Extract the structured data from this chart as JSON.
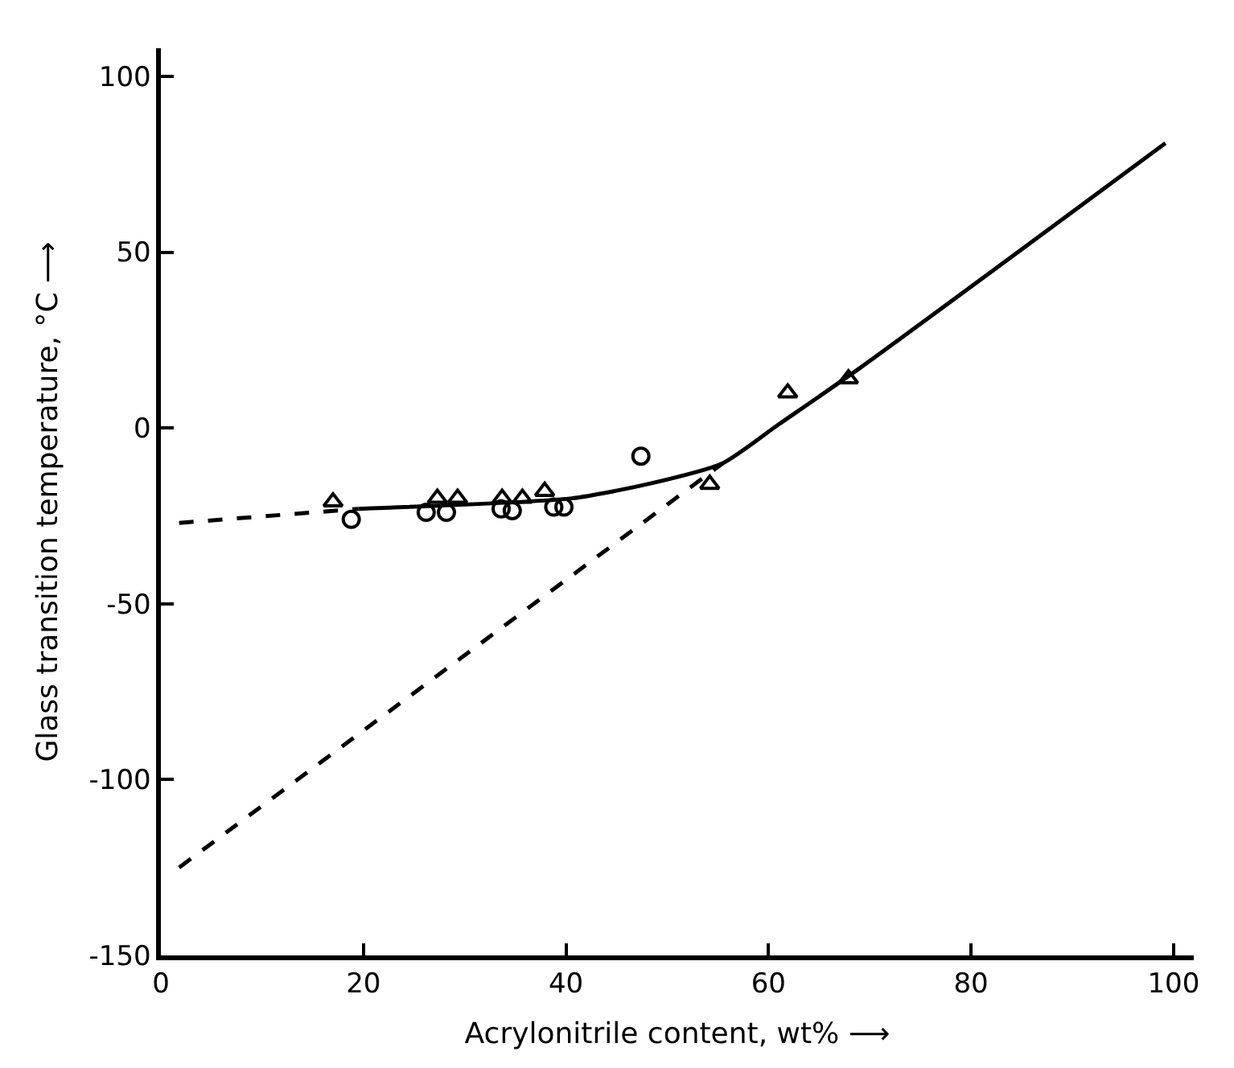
{
  "chart_data": {
    "type": "scatter",
    "xlabel": "Acrylonitrile content, wt% ⟶",
    "ylabel": "Glass transition temperature, °C ⟶",
    "xlim": [
      0,
      102
    ],
    "ylim": [
      -150,
      108
    ],
    "xticks": [
      0,
      20,
      40,
      60,
      80,
      100
    ],
    "yticks": [
      -150,
      -100,
      -50,
      0,
      50,
      100
    ],
    "series": [
      {
        "marker": "triangle",
        "color": "#000000",
        "x": [
          17,
          27.3,
          29.3,
          33.7,
          35.7,
          37.9,
          54.2,
          61.9,
          67.9
        ],
        "values": [
          -21,
          -20,
          -20,
          -20,
          -20,
          -18,
          -16,
          10,
          14
        ]
      },
      {
        "marker": "circle",
        "color": "#000000",
        "x": [
          18.8,
          26.2,
          28.2,
          33.6,
          34.7,
          38.8,
          39.8,
          47.4
        ],
        "values": [
          -26,
          -24,
          -24,
          -23,
          -23.5,
          -22.5,
          -22.5,
          -8
        ]
      },
      {
        "type": "line",
        "line_style": "dashed",
        "color": "#000000",
        "x": [
          1.8,
          19.5
        ],
        "values": [
          -27,
          -23
        ]
      },
      {
        "type": "line",
        "line_style": "solid",
        "color": "#000000",
        "x": [
          19.5,
          40.6,
          48,
          55.5,
          61,
          69,
          99.2
        ],
        "values": [
          -23,
          -20,
          -16,
          -10,
          1,
          17,
          81
        ]
      },
      {
        "type": "line",
        "line_style": "dashed",
        "color": "#000000",
        "x": [
          1.8,
          31.7,
          55.5
        ],
        "values": [
          -125,
          -61,
          -10
        ]
      }
    ]
  }
}
